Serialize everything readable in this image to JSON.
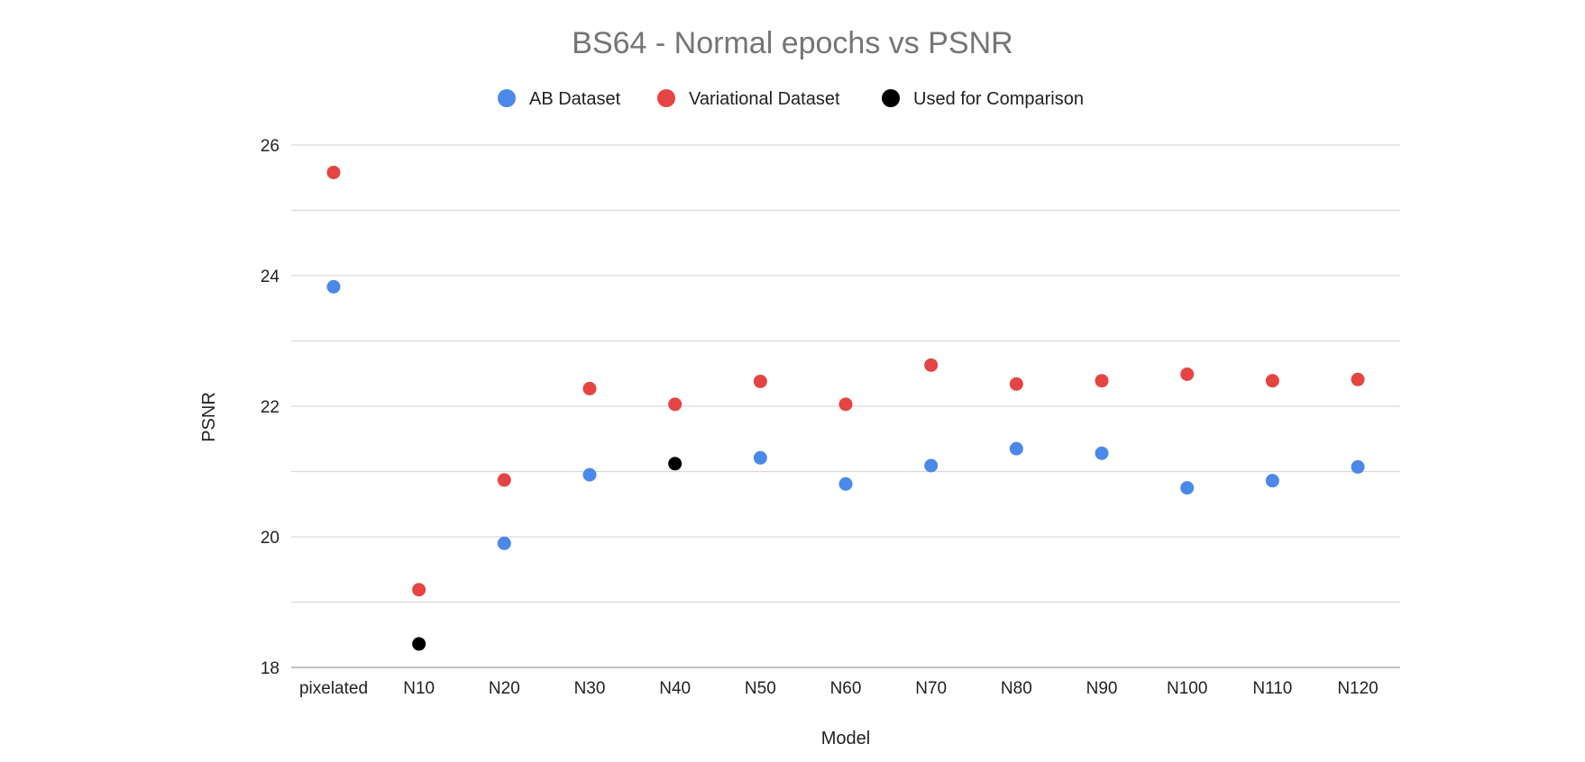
{
  "chart_data": {
    "type": "scatter",
    "title": "BS64 - Normal epochs vs PSNR",
    "xlabel": "Model",
    "ylabel": "PSNR",
    "categories": [
      "pixelated",
      "N10",
      "N20",
      "N30",
      "N40",
      "N50",
      "N60",
      "N70",
      "N80",
      "N90",
      "N100",
      "N110",
      "N120"
    ],
    "ylim": [
      18,
      26
    ],
    "yticks": [
      "18",
      "20",
      "22",
      "24",
      "26"
    ],
    "ytick_values": [
      18,
      20,
      22,
      24,
      26
    ],
    "minor_gridlines": [
      19,
      21,
      23,
      25
    ],
    "grid": true,
    "legend_position": "top",
    "series": [
      {
        "name": "AB Dataset",
        "color": "#4a89e8",
        "values": [
          23.83,
          null,
          19.9,
          20.95,
          null,
          21.21,
          20.81,
          21.09,
          21.35,
          21.28,
          20.75,
          20.86,
          21.07
        ]
      },
      {
        "name": "Variational Dataset",
        "color": "#e54542",
        "values": [
          25.58,
          19.19,
          20.87,
          22.27,
          22.03,
          22.38,
          22.03,
          22.63,
          22.34,
          22.39,
          22.49,
          22.39,
          22.41
        ]
      },
      {
        "name": "Used for Comparison",
        "color": "#000000",
        "values": [
          null,
          18.36,
          null,
          null,
          21.12,
          null,
          null,
          null,
          null,
          null,
          null,
          null,
          null
        ]
      }
    ]
  }
}
